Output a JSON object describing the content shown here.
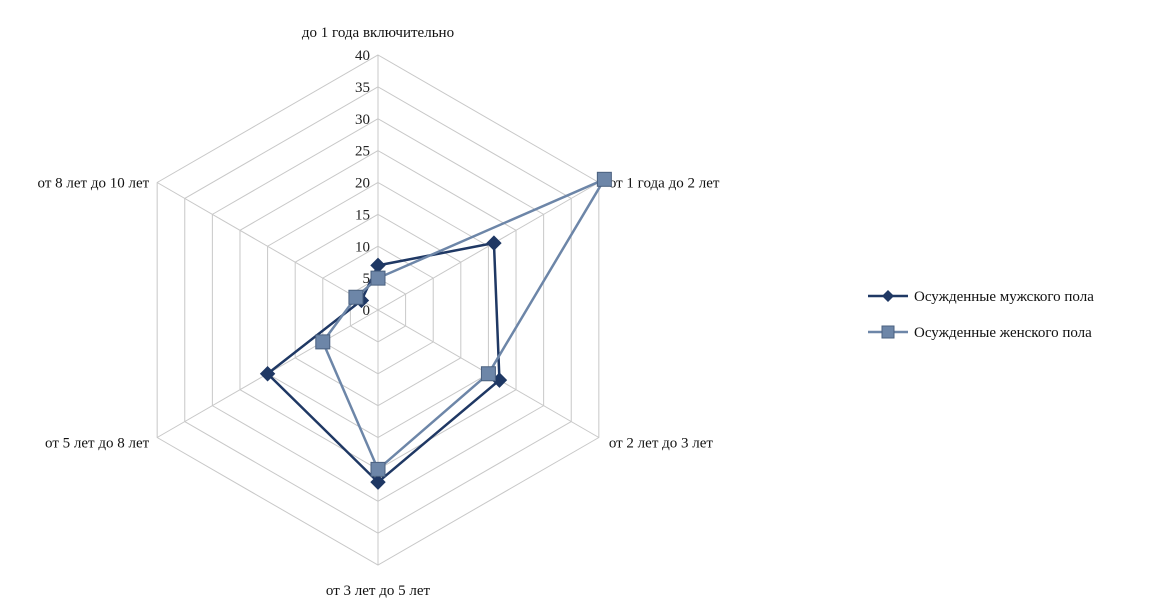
{
  "chart_data": {
    "type": "radar",
    "categories": [
      "до 1 года включительно",
      "от 1 года до 2 лет",
      "от 2 лет до 3 лет",
      "от 3 лет до 5 лет",
      "от 5 лет до 8 лет",
      "от 8 лет до 10 лет"
    ],
    "rlim": [
      0,
      40
    ],
    "ticks": [
      0,
      5,
      10,
      15,
      20,
      25,
      30,
      35,
      40
    ],
    "series": [
      {
        "name": "Осужденные мужского пола",
        "values": [
          7,
          21,
          22,
          27,
          20,
          3
        ],
        "color": "#1f3864",
        "marker": "diamond"
      },
      {
        "name": "Осужденные женского пола",
        "values": [
          5,
          41,
          20,
          25,
          10,
          4
        ],
        "color": "#6d86a8",
        "marker": "square"
      }
    ],
    "legend": "right",
    "grid": true
  }
}
